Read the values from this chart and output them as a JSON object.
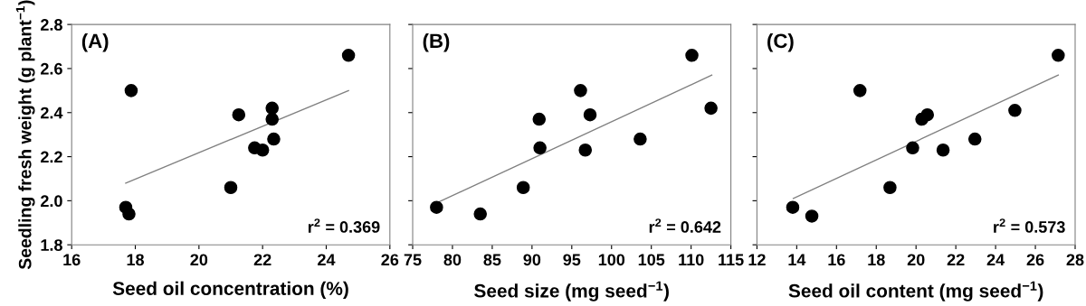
{
  "chart_data": [
    {
      "type": "scatter",
      "xlabel": "Seed oil concentration (%)",
      "ylabel": "Seedling fresh weight (g plant$^{−1}$)",
      "annotations": [
        "(A)",
        "r$^{2}$ = 0.369"
      ],
      "xlim": [
        16,
        26
      ],
      "xticks": [
        16,
        18,
        20,
        22,
        24,
        26
      ],
      "ylim": [
        1.8,
        2.8
      ],
      "yticks": [
        {
          "value": 1.8,
          "label": "1.8"
        },
        {
          "value": 2.0,
          "label": "2.0"
        },
        {
          "value": 2.2,
          "label": "2.2"
        },
        {
          "value": 2.4,
          "label": "2.4"
        },
        {
          "value": 2.6,
          "label": "2.6"
        },
        {
          "value": 2.8,
          "label": "2.8"
        }
      ],
      "series": [
        {
          "color": "#000000",
          "marker": "circle",
          "x": [
            17.87,
            24.7,
            21.25,
            22.3,
            22.3,
            21.75,
            22.0,
            22.35,
            21.0,
            17.7,
            17.8
          ],
          "values": [
            2.5,
            2.66,
            2.39,
            2.42,
            2.37,
            2.24,
            2.23,
            2.28,
            2.06,
            1.97,
            1.94
          ]
        },
        {
          "type": "line",
          "marker": "none",
          "color": "#808080",
          "x": [
            17.7,
            24.7
          ],
          "values": [
            2.08,
            2.5
          ]
        }
      ]
    },
    {
      "type": "scatter",
      "xlabel": "Seed size (mg seed$^{−1}$)",
      "annotations": [
        "(B)",
        "r$^{2}$ = 0.642"
      ],
      "xlim": [
        75,
        115
      ],
      "xticks": [
        75,
        80,
        85,
        90,
        95,
        100,
        105,
        110,
        115
      ],
      "ylim": [
        1.8,
        2.8
      ],
      "yticks": [
        {
          "value": 1.8,
          "label": null
        },
        {
          "value": 2.0,
          "label": null
        },
        {
          "value": 2.2,
          "label": null
        },
        {
          "value": 2.4,
          "label": null
        },
        {
          "value": 2.6,
          "label": null
        },
        {
          "value": 2.8,
          "label": null
        }
      ],
      "tick_labels": "x",
      "series": [
        {
          "color": "#000000",
          "marker": "circle",
          "x": [
            78.0,
            83.5,
            88.9,
            90.9,
            91.0,
            96.1,
            97.3,
            96.7,
            103.6,
            110.1,
            112.5
          ],
          "values": [
            1.97,
            1.94,
            2.06,
            2.37,
            2.24,
            2.5,
            2.39,
            2.23,
            2.28,
            2.66,
            2.42
          ]
        },
        {
          "type": "line",
          "marker": "none",
          "color": "#808080",
          "x": [
            78.0,
            112.6
          ],
          "values": [
            1.99,
            2.57
          ]
        }
      ]
    },
    {
      "type": "scatter",
      "xlabel": "Seed oil content (mg seed$^{−1}$)",
      "annotations": [
        "(C)",
        "r$^{2}$ = 0.573"
      ],
      "xlim": [
        12,
        28
      ],
      "xticks": [
        12,
        14,
        16,
        18,
        20,
        22,
        24,
        26,
        28
      ],
      "ylim": [
        1.8,
        2.8
      ],
      "yticks": [
        {
          "value": 1.8,
          "label": null
        },
        {
          "value": 2.0,
          "label": null
        },
        {
          "value": 2.2,
          "label": null
        },
        {
          "value": 2.4,
          "label": null
        },
        {
          "value": 2.6,
          "label": null
        },
        {
          "value": 2.8,
          "label": null
        }
      ],
      "tick_labels": "x",
      "series": [
        {
          "color": "#000000",
          "marker": "circle",
          "x": [
            13.8,
            14.76,
            17.18,
            18.69,
            19.83,
            20.29,
            20.57,
            21.36,
            22.96,
            24.97,
            27.15
          ],
          "values": [
            1.97,
            1.93,
            2.5,
            2.06,
            2.24,
            2.37,
            2.39,
            2.23,
            2.28,
            2.41,
            2.66
          ]
        },
        {
          "type": "line",
          "marker": "none",
          "color": "#808080",
          "x": [
            13.83,
            27.15
          ],
          "values": [
            2.01,
            2.57
          ]
        }
      ]
    }
  ]
}
